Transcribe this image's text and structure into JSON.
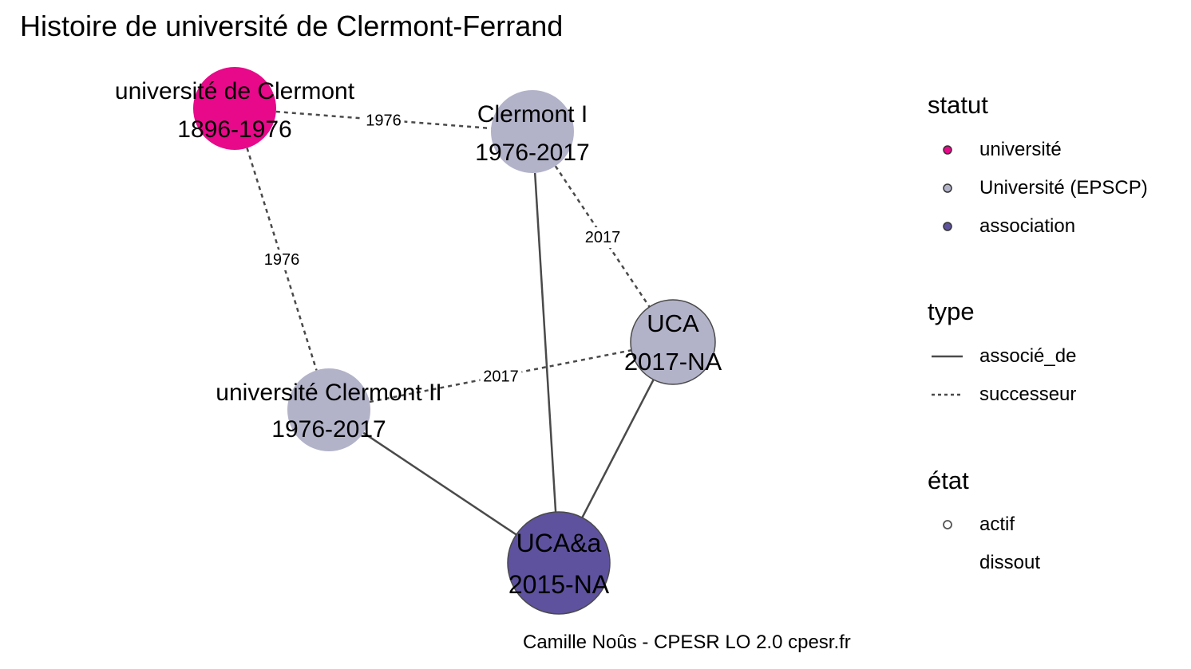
{
  "title": "Histoire de université de Clermont-Ferrand",
  "caption": "Camille Noûs - CPESR LO 2.0 cpesr.fr",
  "colors": {
    "universite": "#e7098a",
    "epscp": "#b2b2c9",
    "association": "#5e529f",
    "edge": "#4a4a4a"
  },
  "nodes": [
    {
      "id": "clermont",
      "name": "université de Clermont",
      "dates": "1896-1976",
      "statut": "université",
      "etat": "dissout"
    },
    {
      "id": "clermont1",
      "name": "Clermont I",
      "dates": "1976-2017",
      "statut": "Université (EPSCP)",
      "etat": "dissout"
    },
    {
      "id": "clermont2",
      "name": "université Clermont II",
      "dates": "1976-2017",
      "statut": "Université (EPSCP)",
      "etat": "dissout"
    },
    {
      "id": "uca",
      "name": "UCA",
      "dates": "2017-NA",
      "statut": "Université (EPSCP)",
      "etat": "actif"
    },
    {
      "id": "ucaa",
      "name": "UCA&a",
      "dates": "2015-NA",
      "statut": "association",
      "etat": "actif"
    }
  ],
  "edges": [
    {
      "from": "clermont",
      "to": "clermont1",
      "type": "successeur",
      "label": "1976"
    },
    {
      "from": "clermont",
      "to": "clermont2",
      "type": "successeur",
      "label": "1976"
    },
    {
      "from": "clermont1",
      "to": "uca",
      "type": "successeur",
      "label": "2017"
    },
    {
      "from": "clermont2",
      "to": "uca",
      "type": "successeur",
      "label": "2017"
    },
    {
      "from": "clermont1",
      "to": "ucaa",
      "type": "associé_de",
      "label": ""
    },
    {
      "from": "clermont2",
      "to": "ucaa",
      "type": "associé_de",
      "label": ""
    },
    {
      "from": "uca",
      "to": "ucaa",
      "type": "associé_de",
      "label": ""
    }
  ],
  "legend": {
    "statut": {
      "title": "statut",
      "items": [
        {
          "label": "université",
          "color": "#e7098a"
        },
        {
          "label": "Université (EPSCP)",
          "color": "#b2b2c9"
        },
        {
          "label": "association",
          "color": "#5e529f"
        }
      ]
    },
    "type": {
      "title": "type",
      "items": [
        {
          "label": "associé_de",
          "style": "solid"
        },
        {
          "label": "successeur",
          "style": "dashed"
        }
      ]
    },
    "etat": {
      "title": "état",
      "items": [
        {
          "label": "actif",
          "outline": true
        },
        {
          "label": "dissout",
          "outline": false
        }
      ]
    }
  }
}
